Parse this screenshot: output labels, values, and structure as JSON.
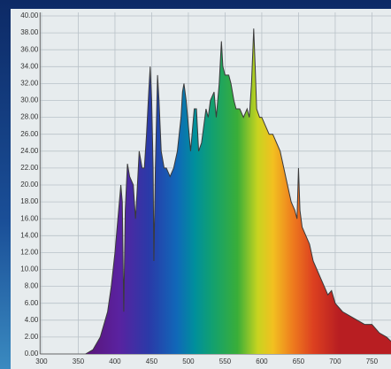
{
  "chart_data": {
    "type": "area",
    "xlim": [
      298,
      776
    ],
    "ylim": [
      0,
      40
    ],
    "xticks": [
      300,
      350,
      400,
      450,
      500,
      550,
      600,
      650,
      700,
      750
    ],
    "yticks": [
      {
        "value": 0,
        "label": "0.00"
      },
      {
        "value": 2,
        "label": "2.00"
      },
      {
        "value": 4,
        "label": "4.00"
      },
      {
        "value": 6,
        "label": "6.00"
      },
      {
        "value": 8,
        "label": "8.00"
      },
      {
        "value": 10,
        "label": "10.00"
      },
      {
        "value": 12,
        "label": "12.00"
      },
      {
        "value": 14,
        "label": "14.00"
      },
      {
        "value": 16,
        "label": "16.00"
      },
      {
        "value": 18,
        "label": "18.00"
      },
      {
        "value": 20,
        "label": "20.00"
      },
      {
        "value": 22,
        "label": "22.00"
      },
      {
        "value": 24,
        "label": "24.00"
      },
      {
        "value": 26,
        "label": "26.00"
      },
      {
        "value": 28,
        "label": "28.00"
      },
      {
        "value": 30,
        "label": "30.00"
      },
      {
        "value": 32,
        "label": "32.00"
      },
      {
        "value": 34,
        "label": "34.00"
      },
      {
        "value": 36,
        "label": "36.00"
      },
      {
        "value": 38,
        "label": "38.00"
      },
      {
        "value": 40,
        "label": "40.00"
      }
    ],
    "grid": true,
    "x": [
      360,
      370,
      380,
      390,
      395,
      400,
      405,
      408,
      410,
      412,
      414,
      417,
      420,
      425,
      428,
      430,
      433,
      437,
      440,
      443,
      446,
      448,
      450,
      452,
      453,
      455,
      458,
      460,
      463,
      467,
      470,
      475,
      480,
      485,
      490,
      492,
      494,
      497,
      500,
      503,
      506,
      508,
      511,
      514,
      518,
      521,
      524,
      527,
      530,
      535,
      538,
      542,
      545,
      547,
      550,
      555,
      558,
      562,
      565,
      570,
      575,
      580,
      583,
      586,
      589,
      591,
      593,
      597,
      600,
      605,
      610,
      615,
      620,
      625,
      630,
      635,
      640,
      645,
      648,
      650,
      652,
      655,
      660,
      665,
      670,
      675,
      680,
      685,
      690,
      695,
      700,
      710,
      720,
      730,
      740,
      750,
      760,
      770,
      776
    ],
    "values": [
      0,
      0.5,
      2,
      5,
      8,
      12,
      17,
      20,
      18,
      5,
      17,
      22.5,
      21,
      20,
      16,
      19,
      24,
      22,
      22,
      26,
      31,
      34,
      30,
      22,
      11,
      22,
      33,
      30,
      24,
      22,
      22,
      21,
      22,
      24,
      28,
      31,
      32,
      30,
      27,
      24,
      27,
      29,
      29,
      24,
      25,
      27,
      29,
      28,
      30,
      31,
      28,
      32,
      37,
      34,
      33,
      33,
      32,
      30,
      29,
      29,
      28,
      29,
      28,
      32,
      38.5,
      34,
      29,
      28,
      28,
      27,
      26,
      26,
      25,
      24,
      22,
      20,
      18,
      17,
      16,
      22,
      17,
      15,
      14,
      13,
      11,
      10,
      9,
      8,
      7,
      7.5,
      6,
      5,
      4.5,
      4,
      3.5,
      3.5,
      2.5,
      2,
      1.5
    ]
  }
}
